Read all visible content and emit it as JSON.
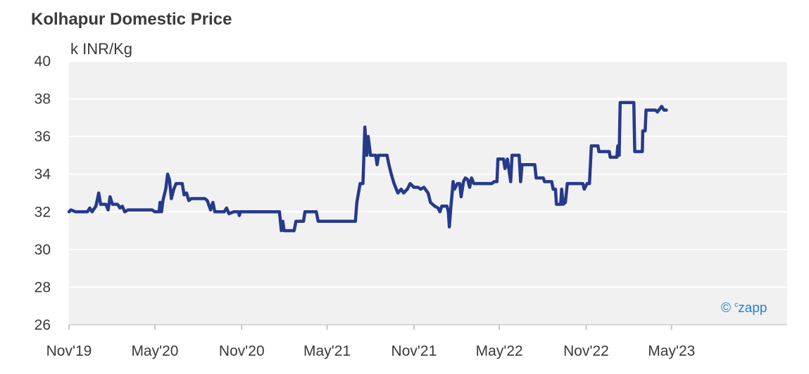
{
  "chart_data": {
    "type": "line",
    "title": "Kolhapur Domestic Price",
    "ylabel": "k INR/Kg",
    "ylim": [
      26,
      40
    ],
    "yticks": [
      26,
      28,
      30,
      32,
      34,
      36,
      38,
      40
    ],
    "xlim": [
      "2019-11-01",
      "2024-01-01"
    ],
    "xticks": [
      {
        "label": "Nov'19",
        "date": "2019-11-01"
      },
      {
        "label": "May'20",
        "date": "2020-05-01"
      },
      {
        "label": "Nov'20",
        "date": "2020-11-01"
      },
      {
        "label": "May'21",
        "date": "2021-05-01"
      },
      {
        "label": "Nov'21",
        "date": "2021-11-01"
      },
      {
        "label": "May'22",
        "date": "2022-05-01"
      },
      {
        "label": "Nov'22",
        "date": "2022-11-01"
      },
      {
        "label": "May'23",
        "date": "2023-05-01"
      }
    ],
    "grid": true,
    "series": [
      {
        "color": "#263a8c",
        "points": [
          [
            "2019-11-01",
            32.0
          ],
          [
            "2019-11-05",
            32.1
          ],
          [
            "2019-11-15",
            32.0
          ],
          [
            "2019-12-10",
            32.0
          ],
          [
            "2019-12-15",
            32.2
          ],
          [
            "2019-12-20",
            32.0
          ],
          [
            "2019-12-28",
            32.3
          ],
          [
            "2020-01-03",
            33.0
          ],
          [
            "2020-01-07",
            32.4
          ],
          [
            "2020-01-18",
            32.4
          ],
          [
            "2020-01-23",
            32.1
          ],
          [
            "2020-01-27",
            32.8
          ],
          [
            "2020-02-01",
            32.4
          ],
          [
            "2020-02-12",
            32.4
          ],
          [
            "2020-02-17",
            32.2
          ],
          [
            "2020-02-22",
            32.3
          ],
          [
            "2020-02-27",
            32.0
          ],
          [
            "2020-03-05",
            32.1
          ],
          [
            "2020-04-25",
            32.1
          ],
          [
            "2020-05-01",
            32.0
          ],
          [
            "2020-05-10",
            32.0
          ],
          [
            "2020-05-12",
            32.5
          ],
          [
            "2020-05-15",
            32.0
          ],
          [
            "2020-05-18",
            32.6
          ],
          [
            "2020-05-24",
            33.2
          ],
          [
            "2020-05-28",
            34.0
          ],
          [
            "2020-06-01",
            33.7
          ],
          [
            "2020-06-05",
            32.7
          ],
          [
            "2020-06-10",
            33.2
          ],
          [
            "2020-06-15",
            33.5
          ],
          [
            "2020-06-28",
            33.5
          ],
          [
            "2020-07-02",
            32.9
          ],
          [
            "2020-07-07",
            33.0
          ],
          [
            "2020-07-12",
            32.6
          ],
          [
            "2020-07-17",
            32.7
          ],
          [
            "2020-08-15",
            32.7
          ],
          [
            "2020-08-20",
            32.6
          ],
          [
            "2020-08-27",
            32.1
          ],
          [
            "2020-09-01",
            32.5
          ],
          [
            "2020-09-05",
            32.0
          ],
          [
            "2020-09-25",
            32.0
          ],
          [
            "2020-09-30",
            32.2
          ],
          [
            "2020-10-05",
            31.9
          ],
          [
            "2020-10-15",
            32.0
          ],
          [
            "2020-10-25",
            32.0
          ],
          [
            "2020-10-27",
            31.8
          ],
          [
            "2020-10-29",
            32.0
          ],
          [
            "2021-01-20",
            32.0
          ],
          [
            "2021-01-24",
            31.0
          ],
          [
            "2021-01-27",
            31.5
          ],
          [
            "2021-01-30",
            31.0
          ],
          [
            "2021-02-20",
            31.0
          ],
          [
            "2021-02-24",
            31.5
          ],
          [
            "2021-03-12",
            31.5
          ],
          [
            "2021-03-15",
            32.0
          ],
          [
            "2021-04-08",
            32.0
          ],
          [
            "2021-04-12",
            31.5
          ],
          [
            "2021-06-30",
            31.5
          ],
          [
            "2021-07-03",
            32.5
          ],
          [
            "2021-07-10",
            33.5
          ],
          [
            "2021-07-16",
            33.5
          ],
          [
            "2021-07-20",
            36.5
          ],
          [
            "2021-07-24",
            35.0
          ],
          [
            "2021-07-27",
            36.0
          ],
          [
            "2021-08-01",
            35.0
          ],
          [
            "2021-08-12",
            35.0
          ],
          [
            "2021-08-15",
            34.5
          ],
          [
            "2021-08-18",
            35.0
          ],
          [
            "2021-09-05",
            35.0
          ],
          [
            "2021-09-09",
            34.5
          ],
          [
            "2021-09-14",
            34.0
          ],
          [
            "2021-09-20",
            33.5
          ],
          [
            "2021-09-28",
            33.0
          ],
          [
            "2021-10-05",
            33.2
          ],
          [
            "2021-10-10",
            33.0
          ],
          [
            "2021-10-18",
            33.2
          ],
          [
            "2021-10-24",
            33.5
          ],
          [
            "2021-11-01",
            33.3
          ],
          [
            "2021-11-10",
            33.3
          ],
          [
            "2021-11-15",
            33.2
          ],
          [
            "2021-11-22",
            33.3
          ],
          [
            "2021-12-01",
            33.0
          ],
          [
            "2021-12-06",
            32.5
          ],
          [
            "2021-12-15",
            32.3
          ],
          [
            "2021-12-22",
            32.2
          ],
          [
            "2021-12-26",
            32.0
          ],
          [
            "2021-12-30",
            32.3
          ],
          [
            "2022-01-10",
            32.3
          ],
          [
            "2022-01-13",
            32.0
          ],
          [
            "2022-01-15",
            31.2
          ],
          [
            "2022-01-18",
            32.2
          ],
          [
            "2022-01-21",
            33.0
          ],
          [
            "2022-01-23",
            33.6
          ],
          [
            "2022-01-26",
            33.2
          ],
          [
            "2022-02-01",
            33.5
          ],
          [
            "2022-02-06",
            33.5
          ],
          [
            "2022-02-09",
            32.8
          ],
          [
            "2022-02-14",
            33.6
          ],
          [
            "2022-02-18",
            33.8
          ],
          [
            "2022-02-23",
            33.7
          ],
          [
            "2022-02-27",
            33.3
          ],
          [
            "2022-03-03",
            33.8
          ],
          [
            "2022-03-08",
            33.5
          ],
          [
            "2022-04-15",
            33.5
          ],
          [
            "2022-04-20",
            33.6
          ],
          [
            "2022-04-26",
            33.6
          ],
          [
            "2022-04-28",
            34.8
          ],
          [
            "2022-05-10",
            34.8
          ],
          [
            "2022-05-13",
            34.3
          ],
          [
            "2022-05-18",
            34.8
          ],
          [
            "2022-05-25",
            33.6
          ],
          [
            "2022-05-28",
            35.0
          ],
          [
            "2022-06-12",
            35.0
          ],
          [
            "2022-06-15",
            33.6
          ],
          [
            "2022-06-18",
            34.5
          ],
          [
            "2022-07-15",
            34.5
          ],
          [
            "2022-07-18",
            33.8
          ],
          [
            "2022-08-02",
            33.8
          ],
          [
            "2022-08-05",
            33.6
          ],
          [
            "2022-08-20",
            33.6
          ],
          [
            "2022-08-23",
            33.2
          ],
          [
            "2022-08-28",
            33.2
          ],
          [
            "2022-08-30",
            32.4
          ],
          [
            "2022-09-08",
            32.4
          ],
          [
            "2022-09-10",
            33.2
          ],
          [
            "2022-09-13",
            32.4
          ],
          [
            "2022-09-18",
            32.5
          ],
          [
            "2022-09-22",
            33.5
          ],
          [
            "2022-10-25",
            33.5
          ],
          [
            "2022-10-28",
            33.2
          ],
          [
            "2022-11-03",
            33.5
          ],
          [
            "2022-11-08",
            33.5
          ],
          [
            "2022-11-12",
            35.5
          ],
          [
            "2022-11-26",
            35.5
          ],
          [
            "2022-11-28",
            35.2
          ],
          [
            "2022-12-20",
            35.2
          ],
          [
            "2022-12-22",
            34.9
          ],
          [
            "2023-01-05",
            34.9
          ],
          [
            "2023-01-07",
            35.5
          ],
          [
            "2023-01-10",
            35.0
          ],
          [
            "2023-01-12",
            37.8
          ],
          [
            "2023-02-10",
            37.8
          ],
          [
            "2023-02-12",
            35.2
          ],
          [
            "2023-02-28",
            35.2
          ],
          [
            "2023-03-01",
            36.3
          ],
          [
            "2023-03-06",
            36.3
          ],
          [
            "2023-03-08",
            37.4
          ],
          [
            "2023-03-28",
            37.4
          ],
          [
            "2023-04-01",
            37.3
          ],
          [
            "2023-04-10",
            37.6
          ],
          [
            "2023-04-15",
            37.4
          ],
          [
            "2023-04-20",
            37.4
          ]
        ]
      }
    ],
    "annotations": [
      {
        "text": "© czapp"
      }
    ]
  }
}
